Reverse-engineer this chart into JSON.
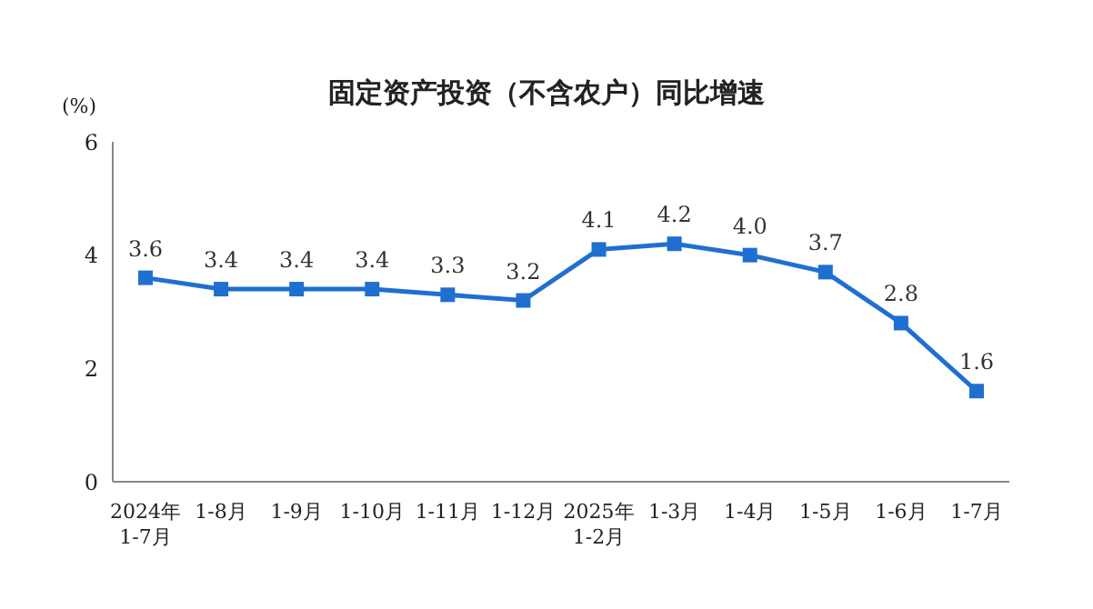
{
  "chart_data": {
    "type": "line",
    "title": "固定资产投资（不含农户）同比增速",
    "ylabel": "(%)",
    "categories": [
      "2024年\n1-7月",
      "1-8月",
      "1-9月",
      "1-10月",
      "1-11月",
      "1-12月",
      "2025年\n1-2月",
      "1-3月",
      "1-4月",
      "1-5月",
      "1-6月",
      "1-7月"
    ],
    "series": [
      {
        "color": "#1f6fd1",
        "values": [
          3.6,
          3.4,
          3.4,
          3.4,
          3.3,
          3.2,
          4.1,
          4.2,
          4.0,
          3.7,
          2.8,
          1.6
        ],
        "value_labels": [
          "3.6",
          "3.4",
          "3.4",
          "3.4",
          "3.3",
          "3.2",
          "4.1",
          "4.2",
          "4.0",
          "3.7",
          "2.8",
          "1.6"
        ]
      }
    ],
    "ylim": [
      0,
      6
    ],
    "yticks": [
      0,
      2,
      4,
      6
    ],
    "grid": false,
    "marker": "square",
    "line_style": "solid"
  }
}
